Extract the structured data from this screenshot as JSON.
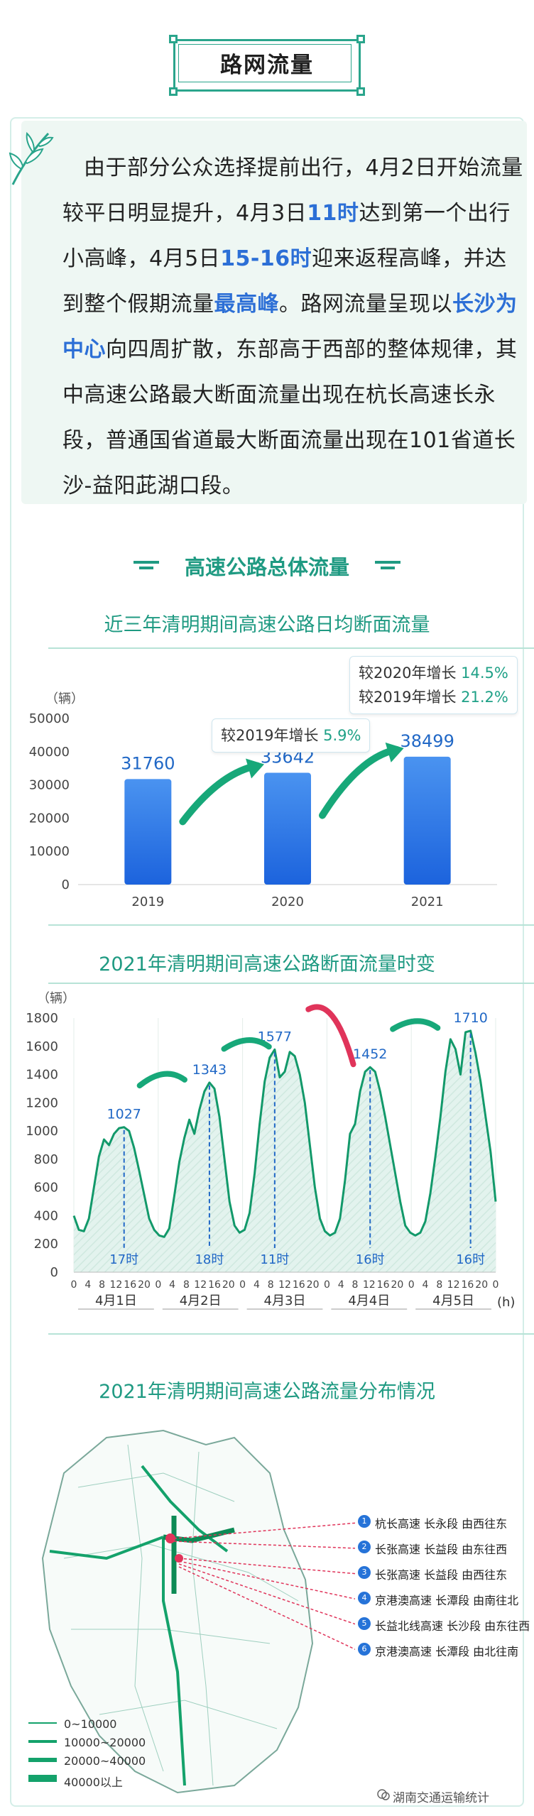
{
  "header": {
    "title": "路网流量"
  },
  "intro": {
    "segments": [
      {
        "t": "由于部分公众选择提前出行，4月2日开始流量较平日明显提升，4月3日",
        "hl": false
      },
      {
        "t": "11时",
        "hl": true
      },
      {
        "t": "达到第一个出行小高峰，4月5日",
        "hl": false
      },
      {
        "t": "15-16时",
        "hl": true
      },
      {
        "t": "迎来返程高峰，并达到整个假期流量",
        "hl": false
      },
      {
        "t": "最高峰",
        "hl": true
      },
      {
        "t": "。路网流量呈现以",
        "hl": false
      },
      {
        "t": "长沙为中心",
        "hl": true
      },
      {
        "t": "向四周扩散，东部高于西部的整体规律，其中高速公路最大断面流量出现在杭长高速长永段，普通国省道最大断面流量出现在101省道长沙-益阳茈湖口段。",
        "hl": false
      }
    ]
  },
  "section": {
    "title": "高速公路总体流量"
  },
  "chart_data": [
    {
      "type": "bar",
      "title": "近三年清明期间高速公路日均断面流量",
      "ylabel": "（辆）",
      "categories": [
        "2019",
        "2020",
        "2021"
      ],
      "values": [
        31760,
        33642,
        38499
      ],
      "ylim": [
        0,
        50000
      ],
      "yticks": [
        0,
        10000,
        20000,
        30000,
        40000,
        50000
      ],
      "annotations": [
        {
          "lines": [
            {
              "text": "较2019年增长 ",
              "num": "5.9%"
            }
          ]
        },
        {
          "lines": [
            {
              "text": "较2020年增长 ",
              "num": "14.5%"
            },
            {
              "text": "较2019年增长 ",
              "num": "21.2%"
            }
          ]
        }
      ],
      "colors": {
        "bar_top": "#4a93f0",
        "bar_bottom": "#1c63dd",
        "arrow": "#17a879",
        "value": "#2168c6"
      }
    },
    {
      "type": "line",
      "title": "2021年清明期间高速公路断面流量时变",
      "ylabel": "（辆）",
      "xlabel": "(h)",
      "ylim": [
        0,
        1800
      ],
      "yticks": [
        0,
        200,
        400,
        600,
        800,
        1000,
        1200,
        1400,
        1600,
        1800
      ],
      "days": [
        "4月1日",
        "4月2日",
        "4月3日",
        "4月4日",
        "4月5日"
      ],
      "hour_ticks": [
        "0",
        "4",
        "8",
        "12",
        "16",
        "20"
      ],
      "end_tick": "0",
      "series": [
        {
          "values": [
            400,
            300,
            290,
            380,
            600,
            820,
            940,
            900,
            980,
            1020,
            1027,
            1000,
            880,
            720,
            550,
            380,
            300,
            260,
            250,
            310,
            540,
            780,
            950,
            1080,
            980,
            1150,
            1280,
            1343,
            1300,
            1100,
            800,
            500,
            330,
            280,
            300,
            420,
            700,
            1050,
            1350,
            1520,
            1577,
            1380,
            1420,
            1560,
            1530,
            1400,
            1200,
            900,
            600,
            380,
            290,
            260,
            280,
            380,
            650,
            980,
            1050,
            1280,
            1420,
            1452,
            1420,
            1280,
            1100,
            900,
            700,
            500,
            330,
            280,
            260,
            280,
            360,
            560,
            820,
            1100,
            1420,
            1650,
            1580,
            1400,
            1700,
            1710,
            1550,
            1350,
            1100,
            850,
            500
          ]
        }
      ],
      "peaks": [
        {
          "label": "1027",
          "hour": "17时"
        },
        {
          "label": "1343",
          "hour": "18时"
        },
        {
          "label": "1577",
          "hour": "11时"
        },
        {
          "label": "1452",
          "hour": "16时"
        },
        {
          "label": "1710",
          "hour": "16时"
        }
      ],
      "colors": {
        "line": "#12996a",
        "fill": "#e3f3ee",
        "peak_text": "#2168c6",
        "arrow_green": "#17a879",
        "arrow_red": "#e0345a"
      }
    }
  ],
  "map": {
    "title": "2021年清明期间高速公路流量分布情况",
    "routes": [
      {
        "n": "1",
        "text": "杭长高速 长永段 由西往东"
      },
      {
        "n": "2",
        "text": "长张高速 长益段 由东往西"
      },
      {
        "n": "3",
        "text": "长张高速 长益段 由西往东"
      },
      {
        "n": "4",
        "text": "京港澳高速 长潭段 由南往北"
      },
      {
        "n": "5",
        "text": "长益北线高速 长沙段 由东往西"
      },
      {
        "n": "6",
        "text": "京港澳高速 长潭段 由北往南"
      }
    ],
    "legend": [
      "0~10000",
      "10000~20000",
      "20000~40000",
      "40000以上"
    ]
  },
  "footer": {
    "watermark": "湖南交通运输统计"
  }
}
